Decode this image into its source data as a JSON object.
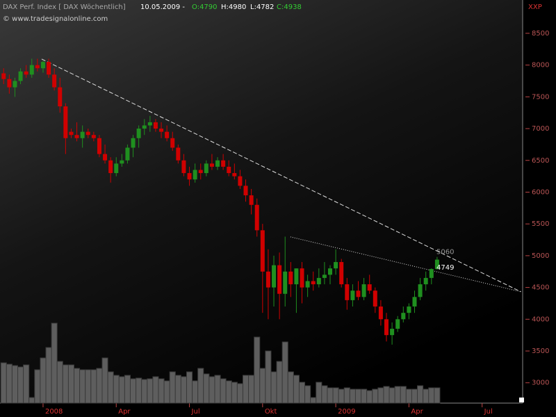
{
  "chart_data": {
    "type": "candlestick",
    "title": "DAX Perf. Index [ DAX  Wöchentlich]",
    "date": "10.05.2009 -",
    "open_label": "O:4790",
    "high_label": "H:4980",
    "low_label": "L:4782",
    "close_label": "C:4938",
    "source": "© www.tradesignalonline.com",
    "symbol": "XXP",
    "up_color": "#1f8f1f",
    "down_color": "#d00000",
    "x": [
      -7,
      -6,
      -5,
      -4,
      -3,
      -2,
      -1,
      0,
      1,
      2,
      3,
      4,
      5,
      6,
      7,
      8,
      9,
      10,
      11,
      12,
      13,
      14,
      15,
      16,
      17,
      18,
      19,
      20,
      21,
      22,
      23,
      24,
      25,
      26,
      27,
      28,
      29,
      30,
      31,
      32,
      33,
      34,
      35,
      36,
      37,
      38,
      39,
      40,
      41,
      42,
      43,
      44,
      45,
      46,
      47,
      48,
      49,
      50,
      51,
      52,
      53,
      54,
      55,
      56,
      57,
      58,
      59,
      60,
      61,
      62,
      63,
      64,
      65,
      66,
      67,
      68,
      69,
      70
    ],
    "open": [
      7870,
      7780,
      7650,
      7750,
      7900,
      7850,
      8000,
      7950,
      8050,
      7850,
      7650,
      7350,
      6950,
      6900,
      6850,
      6950,
      6900,
      6850,
      6600,
      6500,
      6300,
      6450,
      6500,
      6700,
      6850,
      7000,
      7050,
      7100,
      7000,
      6950,
      6850,
      6700,
      6500,
      6300,
      6200,
      6350,
      6300,
      6450,
      6400,
      6500,
      6400,
      6300,
      6250,
      6100,
      5950,
      5800,
      5400,
      4750,
      4500,
      4850,
      4400,
      4750,
      4550,
      4800,
      4500,
      4600,
      4550,
      4650,
      4700,
      4800,
      4900,
      4550,
      4300,
      4450,
      4350,
      4550,
      4450,
      4200,
      4000,
      3750,
      3850,
      4000,
      4100,
      4200,
      4350,
      4550,
      4650,
      4790
    ],
    "high": [
      7950,
      7850,
      7800,
      7950,
      8000,
      8100,
      8100,
      8070,
      8100,
      7950,
      7800,
      7400,
      7000,
      7100,
      7050,
      7000,
      6950,
      6900,
      6750,
      6550,
      6550,
      6600,
      6750,
      6900,
      7050,
      7150,
      7200,
      7150,
      7100,
      7050,
      6950,
      6750,
      6600,
      6400,
      6450,
      6450,
      6500,
      6600,
      6550,
      6600,
      6500,
      6450,
      6350,
      6200,
      6050,
      5900,
      5500,
      5100,
      5000,
      5050,
      5300,
      4900,
      4800,
      4900,
      4700,
      4750,
      4800,
      4900,
      4850,
      5100,
      4950,
      4650,
      4550,
      4600,
      4650,
      4700,
      4500,
      4300,
      4100,
      3950,
      4050,
      4200,
      4250,
      4450,
      4650,
      4750,
      4800,
      4980
    ],
    "low": [
      7700,
      7550,
      7500,
      7700,
      7800,
      7800,
      7900,
      7880,
      7800,
      7600,
      7250,
      6600,
      6850,
      6800,
      6700,
      6850,
      6800,
      6550,
      6450,
      6150,
      6250,
      6400,
      6450,
      6550,
      6700,
      6900,
      6950,
      6950,
      6850,
      6800,
      6650,
      6450,
      6250,
      6100,
      6150,
      6200,
      6250,
      6350,
      6350,
      6350,
      6250,
      6200,
      6050,
      5850,
      5650,
      5300,
      4100,
      4000,
      4200,
      4000,
      4200,
      4350,
      4100,
      4250,
      4350,
      4450,
      4500,
      4550,
      4550,
      4700,
      4500,
      4150,
      4200,
      4300,
      4300,
      4400,
      4100,
      3900,
      3650,
      3600,
      3800,
      3950,
      4000,
      4100,
      4300,
      4450,
      4550,
      4782
    ],
    "close": [
      7780,
      7650,
      7750,
      7900,
      7850,
      8000,
      7950,
      8050,
      7850,
      7650,
      7350,
      6850,
      6900,
      6850,
      6950,
      6900,
      6850,
      6600,
      6500,
      6300,
      6450,
      6500,
      6700,
      6850,
      7000,
      7050,
      7100,
      7000,
      6950,
      6850,
      6700,
      6500,
      6300,
      6200,
      6350,
      6300,
      6450,
      6400,
      6500,
      6400,
      6300,
      6250,
      6100,
      5950,
      5800,
      5400,
      4750,
      4500,
      4850,
      4400,
      4750,
      4550,
      4800,
      4500,
      4600,
      4550,
      4650,
      4700,
      4800,
      4900,
      4550,
      4300,
      4450,
      4350,
      4550,
      4450,
      4200,
      4000,
      3750,
      3850,
      4000,
      4100,
      4200,
      4350,
      4550,
      4650,
      4790,
      4938
    ],
    "volume": [
      58,
      56,
      54,
      52,
      55,
      8,
      48,
      65,
      80,
      115,
      60,
      55,
      55,
      50,
      48,
      48,
      48,
      50,
      65,
      45,
      40,
      38,
      40,
      35,
      36,
      34,
      35,
      38,
      35,
      32,
      45,
      40,
      38,
      45,
      32,
      50,
      42,
      38,
      40,
      35,
      32,
      30,
      28,
      40,
      40,
      95,
      50,
      75,
      45,
      60,
      88,
      45,
      40,
      30,
      25,
      8,
      30,
      25,
      22,
      22,
      20,
      22,
      20,
      20,
      20,
      18,
      20,
      22,
      24,
      22,
      24,
      24,
      20,
      20,
      25,
      20,
      22,
      22
    ],
    "volume_lim": [
      0,
      150
    ],
    "xlim": [
      -7.65,
      85.2
    ],
    "ylim": [
      2680,
      8860
    ],
    "yticks": [
      3000,
      3500,
      4000,
      4500,
      5000,
      5500,
      6000,
      6500,
      7000,
      7500,
      8000,
      8500
    ],
    "xticks": [
      {
        "value": 0,
        "label": "2008"
      },
      {
        "value": 13,
        "label": "Apr"
      },
      {
        "value": 26,
        "label": "Jul"
      },
      {
        "value": 39,
        "label": "Okt"
      },
      {
        "value": 52,
        "label": "2009"
      },
      {
        "value": 65,
        "label": "Apr"
      },
      {
        "value": 78,
        "label": "Jul"
      }
    ],
    "trendlines": [
      {
        "x": [
          -0.25,
          84.9
        ],
        "y": [
          8095,
          4432
        ],
        "style": "dashed"
      },
      {
        "x": [
          43.95,
          84.9
        ],
        "y": [
          5296,
          4432
        ],
        "style": "dotted"
      }
    ],
    "annotations": [
      5060,
      4749
    ]
  }
}
